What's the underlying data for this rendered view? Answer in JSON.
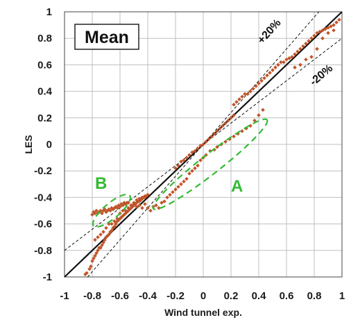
{
  "chart_data": {
    "type": "scatter",
    "title": "Mean",
    "xlabel": "Wind tunnel exp.",
    "ylabel": "LES",
    "xlim": [
      -1,
      1
    ],
    "ylim": [
      -1,
      1
    ],
    "grid": true,
    "x_ticks": [
      "-1",
      "-0.8",
      "-0.6",
      "-0.4",
      "-0.2",
      "0",
      "0.2",
      "0.4",
      "0.6",
      "0.8",
      "1"
    ],
    "y_ticks": [
      "-1",
      "-0.8",
      "-0.6",
      "-0.4",
      "-0.2",
      "0",
      "0.2",
      "0.4",
      "0.6",
      "0.8",
      "1"
    ],
    "point_color": "#c0552a",
    "reference_lines": [
      {
        "label": "",
        "slope": 1.0,
        "style": "solid"
      },
      {
        "label": "+20%",
        "slope": 1.2,
        "style": "dashed"
      },
      {
        "label": "-20%",
        "slope": 0.8,
        "style": "dashed"
      }
    ],
    "annotations": [
      {
        "label": "A",
        "color": "#33bb33",
        "center": [
          0.05,
          -0.15
        ],
        "rx": 0.52,
        "ry": 0.07,
        "angle_deg": -38
      },
      {
        "label": "B",
        "color": "#33bb33",
        "center": [
          -0.66,
          -0.5
        ],
        "rx": 0.17,
        "ry": 0.055,
        "angle_deg": -40
      }
    ],
    "series": [
      {
        "values": [
          [
            -0.85,
            -0.98
          ],
          [
            -0.84,
            -0.97
          ],
          [
            -0.82,
            -0.94
          ],
          [
            -0.81,
            -0.92
          ],
          [
            -0.8,
            -0.88
          ],
          [
            -0.79,
            -0.86
          ],
          [
            -0.78,
            -0.84
          ],
          [
            -0.77,
            -0.82
          ],
          [
            -0.76,
            -0.8
          ],
          [
            -0.75,
            -0.78
          ],
          [
            -0.74,
            -0.78
          ],
          [
            -0.73,
            -0.76
          ],
          [
            -0.72,
            -0.74
          ],
          [
            -0.71,
            -0.72
          ],
          [
            -0.7,
            -0.7
          ],
          [
            -0.69,
            -0.69
          ],
          [
            -0.68,
            -0.68
          ],
          [
            -0.67,
            -0.66
          ],
          [
            -0.66,
            -0.65
          ],
          [
            -0.65,
            -0.63
          ],
          [
            -0.64,
            -0.62
          ],
          [
            -0.63,
            -0.6
          ],
          [
            -0.62,
            -0.58
          ],
          [
            -0.61,
            -0.57
          ],
          [
            -0.6,
            -0.56
          ],
          [
            -0.59,
            -0.55
          ],
          [
            -0.58,
            -0.54
          ],
          [
            -0.57,
            -0.53
          ],
          [
            -0.56,
            -0.52
          ],
          [
            -0.55,
            -0.51
          ],
          [
            -0.54,
            -0.5
          ],
          [
            -0.53,
            -0.49
          ],
          [
            -0.52,
            -0.48
          ],
          [
            -0.51,
            -0.47
          ],
          [
            -0.5,
            -0.46
          ],
          [
            -0.49,
            -0.45
          ],
          [
            -0.48,
            -0.44
          ],
          [
            -0.47,
            -0.43
          ],
          [
            -0.46,
            -0.43
          ],
          [
            -0.45,
            -0.42
          ],
          [
            -0.44,
            -0.41
          ],
          [
            -0.43,
            -0.4
          ],
          [
            -0.42,
            -0.4
          ],
          [
            -0.41,
            -0.39
          ],
          [
            -0.4,
            -0.38
          ],
          [
            -0.78,
            -0.72
          ],
          [
            -0.76,
            -0.7
          ],
          [
            -0.74,
            -0.68
          ],
          [
            -0.72,
            -0.66
          ],
          [
            -0.7,
            -0.63
          ],
          [
            -0.68,
            -0.6
          ],
          [
            -0.66,
            -0.6
          ],
          [
            -0.64,
            -0.58
          ],
          [
            -0.62,
            -0.56
          ],
          [
            -0.6,
            -0.52
          ],
          [
            -0.58,
            -0.5
          ],
          [
            -0.56,
            -0.5
          ],
          [
            -0.54,
            -0.48
          ],
          [
            -0.52,
            -0.46
          ],
          [
            -0.5,
            -0.44
          ],
          [
            -0.48,
            -0.42
          ],
          [
            -0.46,
            -0.41
          ],
          [
            -0.44,
            -0.4
          ],
          [
            -0.42,
            -0.39
          ],
          [
            -0.8,
            -0.53
          ],
          [
            -0.79,
            -0.51
          ],
          [
            -0.78,
            -0.52
          ],
          [
            -0.77,
            -0.5
          ],
          [
            -0.76,
            -0.52
          ],
          [
            -0.75,
            -0.51
          ],
          [
            -0.74,
            -0.5
          ],
          [
            -0.73,
            -0.52
          ],
          [
            -0.72,
            -0.5
          ],
          [
            -0.71,
            -0.49
          ],
          [
            -0.7,
            -0.51
          ],
          [
            -0.69,
            -0.5
          ],
          [
            -0.68,
            -0.49
          ],
          [
            -0.67,
            -0.5
          ],
          [
            -0.66,
            -0.48
          ],
          [
            -0.65,
            -0.49
          ],
          [
            -0.64,
            -0.48
          ],
          [
            -0.63,
            -0.47
          ],
          [
            -0.62,
            -0.48
          ],
          [
            -0.61,
            -0.46
          ],
          [
            -0.6,
            -0.47
          ],
          [
            -0.59,
            -0.45
          ],
          [
            -0.58,
            -0.46
          ],
          [
            -0.57,
            -0.44
          ],
          [
            -0.56,
            -0.45
          ],
          [
            -0.55,
            -0.44
          ],
          [
            -0.54,
            -0.44
          ],
          [
            -0.52,
            -0.46
          ],
          [
            -0.5,
            -0.45
          ],
          [
            -0.48,
            -0.47
          ],
          [
            -0.46,
            -0.46
          ],
          [
            -0.44,
            -0.48
          ],
          [
            -0.42,
            -0.45
          ],
          [
            -0.4,
            -0.48
          ],
          [
            -0.38,
            -0.5
          ],
          [
            -0.36,
            -0.47
          ],
          [
            -0.34,
            -0.46
          ],
          [
            -0.32,
            -0.48
          ],
          [
            -0.3,
            -0.44
          ],
          [
            -0.28,
            -0.43
          ],
          [
            -0.26,
            -0.4
          ],
          [
            -0.24,
            -0.38
          ],
          [
            -0.22,
            -0.36
          ],
          [
            -0.2,
            -0.34
          ],
          [
            -0.18,
            -0.32
          ],
          [
            -0.16,
            -0.3
          ],
          [
            -0.14,
            -0.28
          ],
          [
            -0.12,
            -0.26
          ],
          [
            -0.1,
            -0.22
          ],
          [
            -0.08,
            -0.2
          ],
          [
            -0.06,
            -0.18
          ],
          [
            -0.04,
            -0.16
          ],
          [
            -0.02,
            -0.12
          ],
          [
            0.0,
            -0.1
          ],
          [
            0.02,
            -0.08
          ],
          [
            0.05,
            -0.05
          ],
          [
            0.08,
            -0.04
          ],
          [
            0.1,
            -0.02
          ],
          [
            0.13,
            0.0
          ],
          [
            0.16,
            0.02
          ],
          [
            0.19,
            0.04
          ],
          [
            0.22,
            0.06
          ],
          [
            0.25,
            0.08
          ],
          [
            0.28,
            0.1
          ],
          [
            0.31,
            0.12
          ],
          [
            0.34,
            0.14
          ],
          [
            0.37,
            0.18
          ],
          [
            0.4,
            0.22
          ],
          [
            0.43,
            0.26
          ],
          [
            -0.2,
            -0.18
          ],
          [
            -0.18,
            -0.16
          ],
          [
            -0.16,
            -0.13
          ],
          [
            -0.14,
            -0.12
          ],
          [
            -0.12,
            -0.1
          ],
          [
            -0.1,
            -0.08
          ],
          [
            -0.08,
            -0.06
          ],
          [
            -0.06,
            -0.05
          ],
          [
            -0.04,
            -0.03
          ],
          [
            -0.02,
            -0.01
          ],
          [
            0.0,
            0.0
          ],
          [
            0.02,
            0.02
          ],
          [
            0.04,
            0.04
          ],
          [
            0.06,
            0.06
          ],
          [
            0.08,
            0.08
          ],
          [
            0.1,
            0.1
          ],
          [
            0.12,
            0.12
          ],
          [
            0.14,
            0.14
          ],
          [
            0.16,
            0.16
          ],
          [
            0.18,
            0.18
          ],
          [
            0.2,
            0.2
          ],
          [
            0.22,
            0.22
          ],
          [
            0.22,
            0.3
          ],
          [
            0.24,
            0.32
          ],
          [
            0.26,
            0.34
          ],
          [
            0.28,
            0.36
          ],
          [
            0.3,
            0.38
          ],
          [
            0.32,
            0.38
          ],
          [
            0.34,
            0.4
          ],
          [
            0.36,
            0.42
          ],
          [
            0.38,
            0.44
          ],
          [
            0.4,
            0.46
          ],
          [
            0.42,
            0.48
          ],
          [
            0.44,
            0.5
          ],
          [
            0.46,
            0.52
          ],
          [
            0.48,
            0.54
          ],
          [
            0.5,
            0.56
          ],
          [
            0.52,
            0.58
          ],
          [
            0.54,
            0.6
          ],
          [
            0.56,
            0.62
          ],
          [
            0.58,
            0.62
          ],
          [
            0.6,
            0.64
          ],
          [
            0.62,
            0.65
          ],
          [
            0.64,
            0.66
          ],
          [
            0.66,
            0.68
          ],
          [
            0.68,
            0.7
          ],
          [
            0.7,
            0.72
          ],
          [
            0.72,
            0.74
          ],
          [
            0.74,
            0.76
          ],
          [
            0.76,
            0.78
          ],
          [
            0.78,
            0.8
          ],
          [
            0.8,
            0.82
          ],
          [
            0.82,
            0.84
          ],
          [
            0.84,
            0.85
          ],
          [
            0.86,
            0.86
          ],
          [
            0.88,
            0.87
          ],
          [
            0.9,
            0.88
          ],
          [
            0.92,
            0.89
          ],
          [
            0.94,
            0.9
          ],
          [
            0.96,
            0.92
          ],
          [
            0.98,
            0.94
          ],
          [
            0.66,
            0.58
          ],
          [
            0.7,
            0.6
          ],
          [
            0.74,
            0.64
          ],
          [
            0.78,
            0.66
          ],
          [
            0.82,
            0.72
          ],
          [
            0.86,
            0.8
          ],
          [
            0.9,
            0.84
          ],
          [
            0.94,
            0.86
          ]
        ]
      }
    ]
  }
}
